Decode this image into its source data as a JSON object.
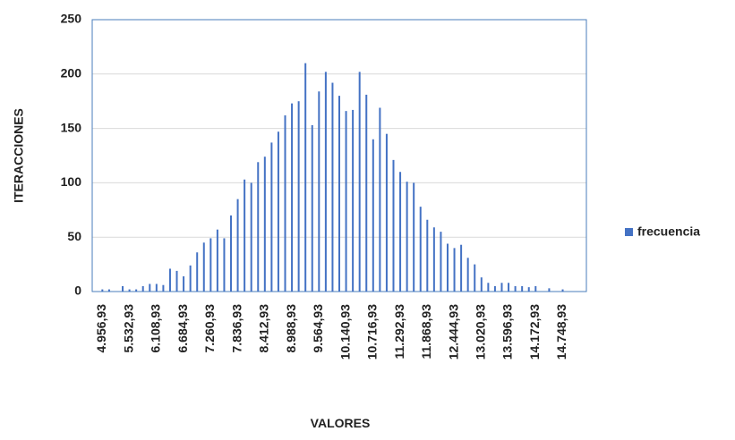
{
  "chart_data": {
    "type": "bar",
    "x_label": "VALORES",
    "y_label": "ITERACCIONES",
    "categories": [
      null,
      "4.956,93",
      null,
      null,
      null,
      "5.532,93",
      null,
      null,
      null,
      "6.108,93",
      null,
      null,
      null,
      "6.684,93",
      null,
      null,
      null,
      "7.260,93",
      null,
      null,
      null,
      "7.836,93",
      null,
      null,
      null,
      "8.412,93",
      null,
      null,
      null,
      "8.988,93",
      null,
      null,
      null,
      "9.564,93",
      null,
      null,
      null,
      "10.140,93",
      null,
      null,
      null,
      "10.716,93",
      null,
      null,
      null,
      "11.292,93",
      null,
      null,
      null,
      "11.868,93",
      null,
      null,
      null,
      "12.444,93",
      null,
      null,
      null,
      "13.020,93",
      null,
      null,
      null,
      "13.596,93",
      null,
      null,
      null,
      "14.172,93",
      null,
      null,
      null,
      "14.748,93",
      null,
      null,
      null
    ],
    "series": [
      {
        "name": "frecuencia",
        "color": "#4472c4",
        "values": [
          0,
          2,
          2,
          0,
          5,
          2,
          2,
          5,
          7,
          7,
          6,
          21,
          19,
          14,
          24,
          36,
          45,
          49,
          57,
          49,
          70,
          85,
          103,
          100,
          119,
          124,
          137,
          147,
          162,
          173,
          175,
          210,
          153,
          184,
          202,
          192,
          180,
          166,
          167,
          202,
          181,
          140,
          169,
          145,
          121,
          110,
          101,
          100,
          78,
          66,
          59,
          55,
          44,
          40,
          43,
          31,
          25,
          13,
          8,
          5,
          8,
          8,
          5,
          5,
          4,
          5,
          0,
          3,
          0,
          2,
          0,
          0,
          0
        ]
      }
    ],
    "ylim": [
      0,
      250
    ],
    "yticks": [
      0,
      50,
      100,
      150,
      200,
      250
    ],
    "grid": true,
    "legend": "right"
  }
}
